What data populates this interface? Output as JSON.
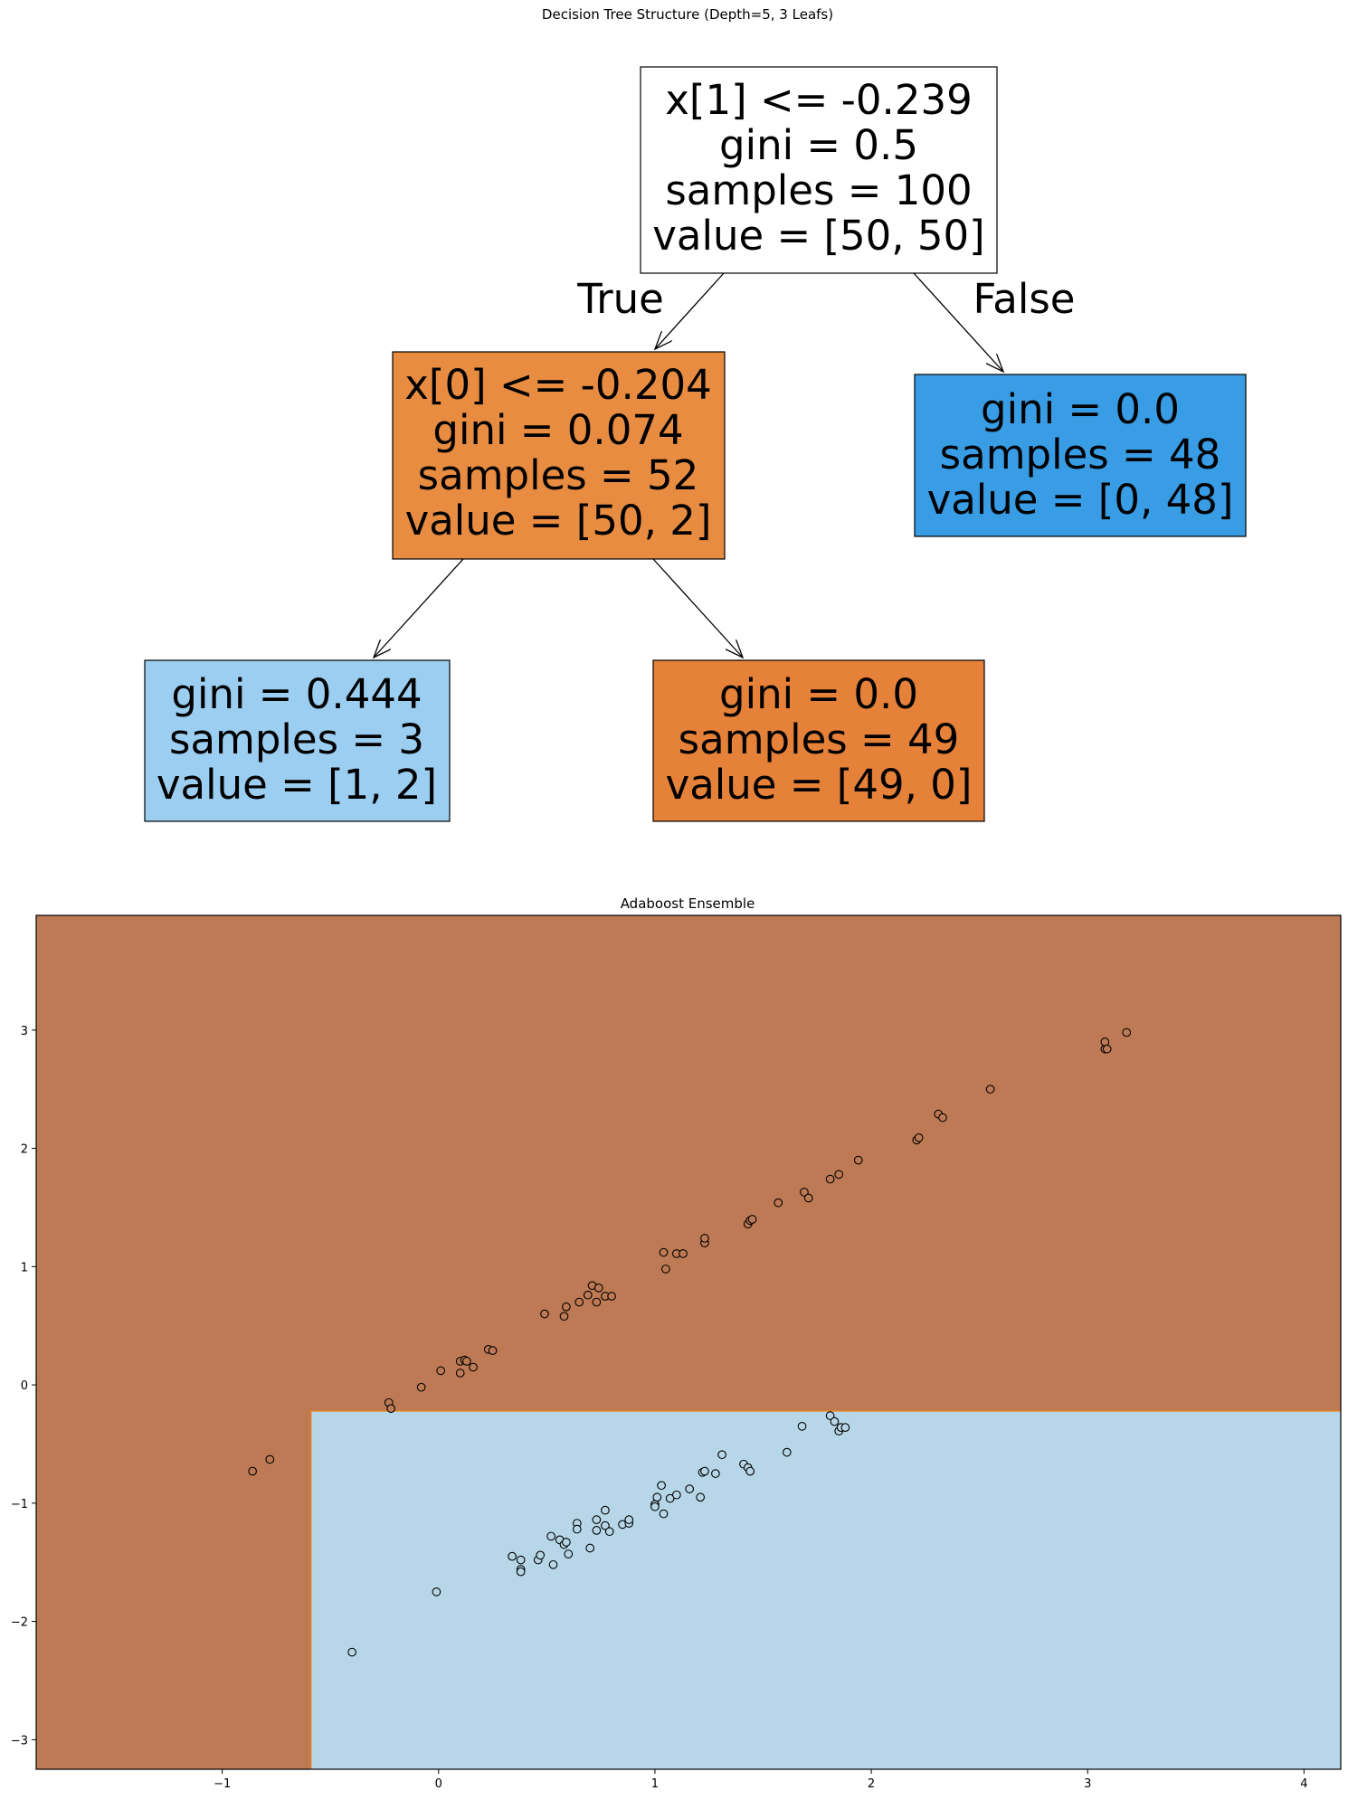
{
  "tree": {
    "title": "Decision Tree Structure (Depth=5, 3 Leafs)",
    "true_label": "True",
    "false_label": "False",
    "nodes": [
      {
        "id": "root",
        "fill": "#ffffff",
        "lines": [
          "x[1] <= -0.239",
          "gini = 0.5",
          "samples = 100",
          "value = [50, 50]"
        ]
      },
      {
        "id": "left",
        "fill": "#e88c42",
        "lines": [
          "x[0] <= -0.204",
          "gini = 0.074",
          "samples = 52",
          "value = [50, 2]"
        ]
      },
      {
        "id": "right",
        "fill": "#399de5",
        "lines": [
          "gini = 0.0",
          "samples = 48",
          "value = [0, 48]"
        ]
      },
      {
        "id": "left-left",
        "fill": "#9ccef2",
        "lines": [
          "gini = 0.444",
          "samples = 3",
          "value = [1, 2]"
        ]
      },
      {
        "id": "left-right",
        "fill": "#e58139",
        "lines": [
          "gini = 0.0",
          "samples = 49",
          "value = [49, 0]"
        ]
      }
    ]
  },
  "chart_data": {
    "type": "scatter",
    "title": "Adaboost Ensemble",
    "xlim": [
      -1.86,
      4.17
    ],
    "ylim": [
      -3.25,
      3.97
    ],
    "xticks": [
      "−1",
      "0",
      "1",
      "2",
      "3",
      "4"
    ],
    "xtick_values": [
      -1,
      0,
      1,
      2,
      3,
      4
    ],
    "yticks": [
      "−3",
      "−2",
      "−1",
      "0",
      "1",
      "2",
      "3"
    ],
    "ytick_values": [
      -3,
      -2,
      -1,
      0,
      1,
      2,
      3
    ],
    "grid": false,
    "regions": [
      {
        "class": 0,
        "color": "#be7a54",
        "description": "background"
      },
      {
        "class": 1,
        "color": "#b7d7e8",
        "x_min": -0.59,
        "y_max": -0.22
      }
    ],
    "series": [
      {
        "class": 0,
        "fill": "#be7a54",
        "points": [
          [
            -0.86,
            -0.73
          ],
          [
            -0.78,
            -0.63
          ],
          [
            -0.23,
            -0.15
          ],
          [
            -0.22,
            -0.2
          ],
          [
            -0.08,
            -0.02
          ],
          [
            0.01,
            0.12
          ],
          [
            0.1,
            0.1
          ],
          [
            0.1,
            0.2
          ],
          [
            0.12,
            0.21
          ],
          [
            0.13,
            0.2
          ],
          [
            0.16,
            0.15
          ],
          [
            0.23,
            0.3
          ],
          [
            0.25,
            0.29
          ],
          [
            0.49,
            0.6
          ],
          [
            0.58,
            0.58
          ],
          [
            0.59,
            0.66
          ],
          [
            0.65,
            0.7
          ],
          [
            0.69,
            0.76
          ],
          [
            0.71,
            0.84
          ],
          [
            0.73,
            0.7
          ],
          [
            0.74,
            0.82
          ],
          [
            0.77,
            0.75
          ],
          [
            0.8,
            0.75
          ],
          [
            1.04,
            1.12
          ],
          [
            1.05,
            0.98
          ],
          [
            1.1,
            1.11
          ],
          [
            1.13,
            1.11
          ],
          [
            1.23,
            1.2
          ],
          [
            1.23,
            1.24
          ],
          [
            1.43,
            1.36
          ],
          [
            1.44,
            1.39
          ],
          [
            1.45,
            1.4
          ],
          [
            1.57,
            1.54
          ],
          [
            1.69,
            1.63
          ],
          [
            1.71,
            1.58
          ],
          [
            1.81,
            1.74
          ],
          [
            1.85,
            1.78
          ],
          [
            1.94,
            1.9
          ],
          [
            2.21,
            2.07
          ],
          [
            2.22,
            2.09
          ],
          [
            2.31,
            2.29
          ],
          [
            2.33,
            2.26
          ],
          [
            2.55,
            2.5
          ],
          [
            3.08,
            2.84
          ],
          [
            3.08,
            2.9
          ],
          [
            3.09,
            2.84
          ],
          [
            3.18,
            2.98
          ]
        ]
      },
      {
        "class": 1,
        "fill": "#b7d7e8",
        "points": [
          [
            -0.4,
            -2.26
          ],
          [
            -0.01,
            -1.75
          ],
          [
            0.34,
            -1.45
          ],
          [
            0.38,
            -1.48
          ],
          [
            0.38,
            -1.56
          ],
          [
            0.38,
            -1.58
          ],
          [
            0.46,
            -1.48
          ],
          [
            0.47,
            -1.44
          ],
          [
            0.52,
            -1.28
          ],
          [
            0.53,
            -1.52
          ],
          [
            0.56,
            -1.31
          ],
          [
            0.58,
            -1.35
          ],
          [
            0.59,
            -1.33
          ],
          [
            0.6,
            -1.43
          ],
          [
            0.64,
            -1.17
          ],
          [
            0.64,
            -1.22
          ],
          [
            0.7,
            -1.38
          ],
          [
            0.73,
            -1.14
          ],
          [
            0.73,
            -1.23
          ],
          [
            0.77,
            -1.06
          ],
          [
            0.77,
            -1.19
          ],
          [
            0.79,
            -1.24
          ],
          [
            0.85,
            -1.18
          ],
          [
            0.88,
            -1.17
          ],
          [
            0.88,
            -1.14
          ],
          [
            1.0,
            -1.01
          ],
          [
            1.0,
            -1.03
          ],
          [
            1.01,
            -0.95
          ],
          [
            1.03,
            -0.85
          ],
          [
            1.04,
            -1.09
          ],
          [
            1.07,
            -0.96
          ],
          [
            1.1,
            -0.93
          ],
          [
            1.16,
            -0.88
          ],
          [
            1.21,
            -0.95
          ],
          [
            1.22,
            -0.74
          ],
          [
            1.23,
            -0.73
          ],
          [
            1.28,
            -0.75
          ],
          [
            1.31,
            -0.59
          ],
          [
            1.41,
            -0.67
          ],
          [
            1.43,
            -0.7
          ],
          [
            1.44,
            -0.73
          ],
          [
            1.61,
            -0.57
          ],
          [
            1.68,
            -0.35
          ],
          [
            1.81,
            -0.26
          ],
          [
            1.83,
            -0.31
          ],
          [
            1.85,
            -0.39
          ],
          [
            1.86,
            -0.36
          ],
          [
            1.88,
            -0.36
          ]
        ]
      }
    ]
  }
}
